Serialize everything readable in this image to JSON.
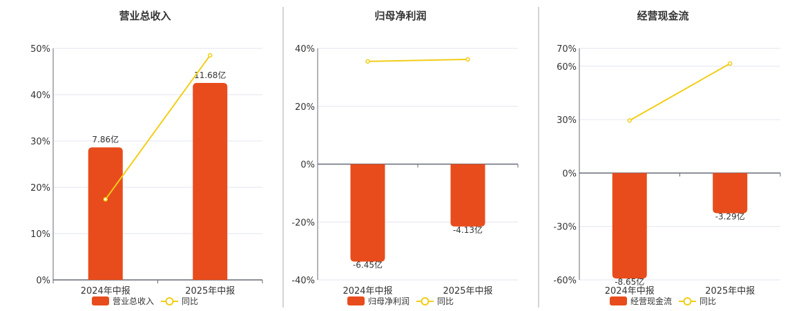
{
  "colors": {
    "bar": "#e84c1c",
    "line": "#f2cd16",
    "grid": "#e3e6ef",
    "axis": "#666a75",
    "divider": "#aaaaaa"
  },
  "chart_data": [
    {
      "type": "bar+line",
      "title": "营业总收入",
      "categories": [
        "2024年中报",
        "2025年中报"
      ],
      "bar_series": {
        "name": "营业总收入",
        "values": [
          7.86,
          11.68
        ],
        "labels": [
          "7.86亿",
          "11.68亿"
        ],
        "unit": "亿"
      },
      "line_series": {
        "name": "同比",
        "values": [
          17.4,
          48.5
        ],
        "unit": "%"
      },
      "yticks": [
        0,
        10,
        20,
        30,
        40,
        50
      ],
      "ytick_labels": [
        "0%",
        "10%",
        "20%",
        "30%",
        "40%",
        "50%"
      ],
      "ylim": [
        0,
        50
      ],
      "legend_position": "bottom"
    },
    {
      "type": "bar+line",
      "title": "归母净利润",
      "categories": [
        "2024年中报",
        "2025年中报"
      ],
      "bar_series": {
        "name": "归母净利润",
        "values": [
          -6.45,
          -4.13
        ],
        "labels": [
          "-6.45亿",
          "-4.13亿"
        ],
        "unit": "亿"
      },
      "line_series": {
        "name": "同比",
        "values": [
          35.5,
          36.2
        ],
        "unit": "%"
      },
      "yticks": [
        -40,
        -20,
        0,
        20,
        40
      ],
      "ytick_labels": [
        "-40%",
        "-20%",
        "0%",
        "20%",
        "40%"
      ],
      "ylim": [
        -40,
        40
      ],
      "legend_position": "bottom"
    },
    {
      "type": "bar+line",
      "title": "经营现金流",
      "categories": [
        "2024年中报",
        "2025年中报"
      ],
      "bar_series": {
        "name": "经营现金流",
        "values": [
          -8.65,
          -3.29
        ],
        "labels": [
          "-8.65亿",
          "-3.29亿"
        ],
        "unit": "亿"
      },
      "line_series": {
        "name": "同比",
        "values": [
          29.5,
          61.5
        ],
        "unit": "%"
      },
      "yticks": [
        -60,
        -30,
        0,
        30,
        60,
        70
      ],
      "ytick_labels": [
        "-60%",
        "-30%",
        "0%",
        "30%",
        "60%",
        "70%"
      ],
      "ylim": [
        -60,
        70
      ],
      "legend_position": "bottom"
    }
  ]
}
